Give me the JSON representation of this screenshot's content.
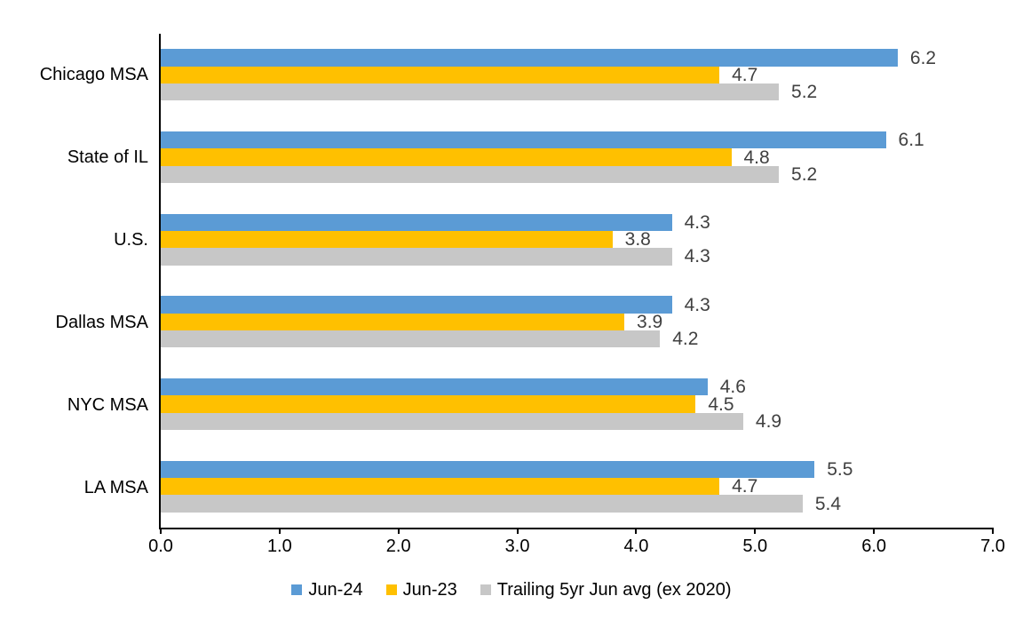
{
  "chart_data": {
    "type": "bar",
    "orientation": "horizontal",
    "categories": [
      "Chicago MSA",
      "State of IL",
      "U.S.",
      "Dallas MSA",
      "NYC MSA",
      "LA MSA"
    ],
    "series": [
      {
        "name": "Jun-24",
        "color": "#5B9BD5",
        "values": [
          6.2,
          6.1,
          4.3,
          4.3,
          4.6,
          5.5
        ]
      },
      {
        "name": "Jun-23",
        "color": "#FFC000",
        "values": [
          4.7,
          4.8,
          3.8,
          3.9,
          4.5,
          4.7
        ]
      },
      {
        "name": "Trailing 5yr Jun avg (ex 2020)",
        "color": "#C7C7C7",
        "values": [
          5.2,
          5.2,
          4.3,
          4.2,
          4.9,
          5.4
        ]
      }
    ],
    "xlim": [
      0,
      7
    ],
    "x_ticks": [
      "0.0",
      "1.0",
      "2.0",
      "3.0",
      "4.0",
      "5.0",
      "6.0",
      "7.0"
    ],
    "value_labels_shown": true,
    "grid": false,
    "legend_position": "bottom"
  },
  "colors": {
    "axis": "#000000",
    "value_label_text": "#404040",
    "category_label_text": "#000000",
    "tick_label_text": "#000000",
    "background": "#FFFFFF"
  }
}
